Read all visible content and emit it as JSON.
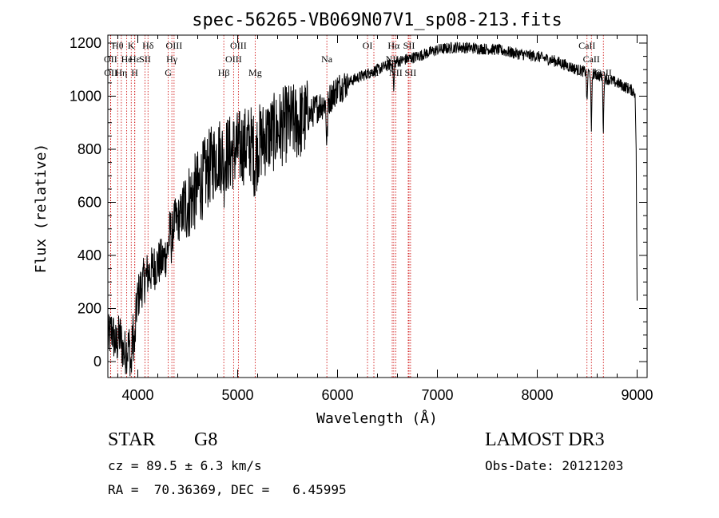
{
  "chart_data": {
    "type": "line",
    "title": "spec-56265-VB069N07V1_sp08-213.fits",
    "xlabel": "Wavelength (Å)",
    "ylabel": "Flux (relative)",
    "xlim": [
      3700,
      9100
    ],
    "ylim": [
      -60,
      1230
    ],
    "xticks": [
      4000,
      5000,
      6000,
      7000,
      8000,
      9000
    ],
    "yticks": [
      0,
      200,
      400,
      600,
      800,
      1000,
      1200
    ],
    "spectrum_anchors": [
      [
        3700,
        80
      ],
      [
        3740,
        120
      ],
      [
        3780,
        60
      ],
      [
        3820,
        100
      ],
      [
        3860,
        30
      ],
      [
        3900,
        50
      ],
      [
        3930,
        90
      ],
      [
        3970,
        170
      ],
      [
        4000,
        240
      ],
      [
        4040,
        290
      ],
      [
        4100,
        330
      ],
      [
        4150,
        350
      ],
      [
        4200,
        370
      ],
      [
        4250,
        380
      ],
      [
        4300,
        420
      ],
      [
        4330,
        520
      ],
      [
        4400,
        530
      ],
      [
        4500,
        600
      ],
      [
        4600,
        650
      ],
      [
        4700,
        720
      ],
      [
        4800,
        780
      ],
      [
        4900,
        780
      ],
      [
        5000,
        800
      ],
      [
        5100,
        820
      ],
      [
        5200,
        820
      ],
      [
        5300,
        850
      ],
      [
        5400,
        870
      ],
      [
        5500,
        900
      ],
      [
        5600,
        900
      ],
      [
        5700,
        920
      ],
      [
        5800,
        960
      ],
      [
        5900,
        980
      ],
      [
        6000,
        1030
      ],
      [
        6200,
        1070
      ],
      [
        6400,
        1100
      ],
      [
        6600,
        1130
      ],
      [
        6800,
        1150
      ],
      [
        7000,
        1175
      ],
      [
        7200,
        1185
      ],
      [
        7400,
        1180
      ],
      [
        7600,
        1175
      ],
      [
        7800,
        1160
      ],
      [
        8000,
        1150
      ],
      [
        8200,
        1130
      ],
      [
        8400,
        1100
      ],
      [
        8600,
        1080
      ],
      [
        8800,
        1050
      ],
      [
        8960,
        1020
      ],
      [
        9000,
        1000
      ]
    ],
    "absorption_features": [
      {
        "center": 3933,
        "depth": 120,
        "width": 12
      },
      {
        "center": 3968,
        "depth": 110,
        "width": 12
      },
      {
        "center": 4340,
        "depth": 80,
        "width": 10
      },
      {
        "center": 4861,
        "depth": 60,
        "width": 10
      },
      {
        "center": 5175,
        "depth": 80,
        "width": 16
      },
      {
        "center": 5893,
        "depth": 160,
        "width": 8
      },
      {
        "center": 6563,
        "depth": 110,
        "width": 6
      },
      {
        "center": 8498,
        "depth": 120,
        "width": 6
      },
      {
        "center": 8542,
        "depth": 230,
        "width": 6
      },
      {
        "center": 8662,
        "depth": 200,
        "width": 6
      }
    ],
    "tail": [
      [
        8980,
        1000
      ],
      [
        8990,
        800
      ],
      [
        8995,
        500
      ],
      [
        9000,
        230
      ]
    ],
    "noise": [
      {
        "from": 3700,
        "to": 4450,
        "amp": 90
      },
      {
        "from": 4450,
        "to": 5700,
        "amp": 150
      },
      {
        "from": 5700,
        "to": 6100,
        "amp": 60
      },
      {
        "from": 6100,
        "to": 9000,
        "amp": 22
      }
    ],
    "spectral_lines": [
      {
        "label": "Hθ",
        "wavelength": 3798,
        "row": 0
      },
      {
        "label": "OII",
        "wavelength": 3727,
        "row": 1
      },
      {
        "label": "OII",
        "wavelength": 3729,
        "row": 2
      },
      {
        "label": "Hε",
        "wavelength": 3970,
        "row": 1
      },
      {
        "label": "Hη",
        "wavelength": 3835,
        "row": 2
      },
      {
        "label": "K",
        "wavelength": 3934,
        "row": 0
      },
      {
        "label": "He",
        "wavelength": 3889,
        "row": 1
      },
      {
        "label": "H",
        "wavelength": 3969,
        "row": 2
      },
      {
        "label": "Hδ",
        "wavelength": 4102,
        "row": 0
      },
      {
        "label": "SII",
        "wavelength": 4072,
        "row": 1
      },
      {
        "label": "OIII",
        "wavelength": 4363,
        "row": 0
      },
      {
        "label": "Hγ",
        "wavelength": 4341,
        "row": 1
      },
      {
        "label": "G",
        "wavelength": 4305,
        "row": 2
      },
      {
        "label": "Hβ",
        "wavelength": 4861,
        "row": 2
      },
      {
        "label": "OIII",
        "wavelength": 5007,
        "row": 0
      },
      {
        "label": "OIII",
        "wavelength": 4959,
        "row": 1
      },
      {
        "label": "Mg",
        "wavelength": 5175,
        "row": 2
      },
      {
        "label": "Na",
        "wavelength": 5893,
        "row": 1
      },
      {
        "label": "OI",
        "wavelength": 6300,
        "row": 0
      },
      {
        "label": "OI",
        "wavelength": 6364,
        "row": 2
      },
      {
        "label": "Hα",
        "wavelength": 6563,
        "row": 0
      },
      {
        "label": "NII",
        "wavelength": 6548,
        "row": 1
      },
      {
        "label": "NII",
        "wavelength": 6583,
        "row": 2
      },
      {
        "label": "SII",
        "wavelength": 6716,
        "row": 0
      },
      {
        "label": "Li",
        "wavelength": 6708,
        "row": 1
      },
      {
        "label": "SII",
        "wavelength": 6731,
        "row": 2
      },
      {
        "label": "CaII",
        "wavelength": 8498,
        "row": 0
      },
      {
        "label": "CaII",
        "wavelength": 8542,
        "row": 1
      },
      {
        "label": "CaII",
        "wavelength": 8662,
        "row": 2
      }
    ]
  },
  "object_class": "STAR",
  "subclass": "G8",
  "survey": "LAMOST DR3",
  "velocity_text": "cz = 89.5 ± 6.3 km/s",
  "obs_date_text": "Obs-Date: 20121203",
  "coords_text": "RA =  70.36369, DEC =   6.45995",
  "colors": {
    "spectrum": "#000000",
    "line_markers": "#cc0000",
    "axes": "#000000"
  }
}
